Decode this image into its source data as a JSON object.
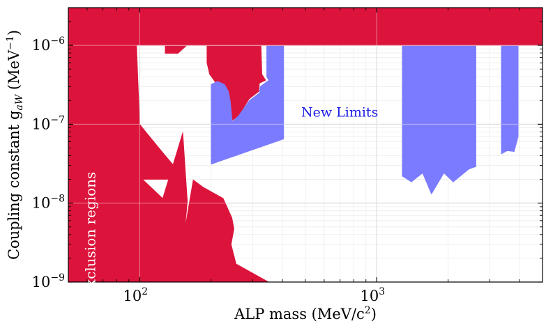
{
  "chart_data": {
    "type": "area",
    "xscale": "log",
    "yscale": "log",
    "xlim": [
      50,
      5000
    ],
    "ylim": [
      1e-09,
      3e-06
    ],
    "xlabel_main": "ALP mass (MeV/c",
    "xlabel_sup": "2",
    "xlabel_end": ")",
    "ylabel_main": "Coupling constant g",
    "ylabel_sub": "aW",
    "ylabel_end": " (MeV",
    "ylabel_sup": "−1",
    "ylabel_close": ")",
    "x_ticks": [
      {
        "value": 100,
        "base": "10",
        "exp": "2"
      },
      {
        "value": 1000,
        "base": "10",
        "exp": "3"
      }
    ],
    "y_ticks": [
      {
        "value": 1e-09,
        "base": "10",
        "exp": "−9"
      },
      {
        "value": 1e-08,
        "base": "10",
        "exp": "−8"
      },
      {
        "value": 1e-07,
        "base": "10",
        "exp": "−7"
      },
      {
        "value": 1e-06,
        "base": "10",
        "exp": "−6"
      }
    ],
    "grid": true,
    "annotations": [
      {
        "text": "Exclusion regions",
        "x": 65,
        "y": 4e-09,
        "rotation": -90,
        "style": "excl"
      },
      {
        "text": "New Limits",
        "x": 480,
        "y": 1.25e-07,
        "rotation": 0,
        "style": "new"
      }
    ],
    "series": [
      {
        "role": "excluded",
        "color": "#dc143c",
        "regions": [
          [
            [
              50,
              3e-06
            ],
            [
              5000,
              3e-06
            ],
            [
              5000,
              1e-06
            ],
            [
              50,
              1e-06
            ]
          ],
          [
            [
              50,
              1e-06
            ],
            [
              97,
              1e-06
            ],
            [
              100,
              1e-07
            ],
            [
              108,
              7.5e-08
            ],
            [
              125,
              4.4e-08
            ],
            [
              150,
              2.3e-08
            ],
            [
              140,
              2e-08
            ],
            [
              103,
              2e-08
            ],
            [
              125,
              1.15e-08
            ],
            [
              152,
              7.9e-08
            ],
            [
              159,
              1.05e-08
            ],
            [
              155,
              4.7e-09
            ],
            [
              168,
              1.98e-08
            ],
            [
              185,
              1.6e-08
            ],
            [
              225,
              1.15e-08
            ],
            [
              245,
              6.5e-09
            ],
            [
              250,
              4.7e-09
            ],
            [
              243,
              3e-09
            ],
            [
              255,
              1.7e-09
            ],
            [
              350,
              1e-09
            ],
            [
              50,
              1e-09
            ]
          ],
          [
            [
              128,
              7.9e-07
            ],
            [
              145,
              7.9e-07
            ],
            [
              157,
              9.8e-07
            ],
            [
              128,
              9.8e-07
            ]
          ],
          [
            [
              192,
              9.8e-07
            ],
            [
              192,
              6e-07
            ],
            [
              197,
              4.3e-07
            ],
            [
              210,
              3.3e-07
            ],
            [
              225,
              3.1e-07
            ],
            [
              234,
              2.7e-07
            ],
            [
              240,
              2e-07
            ],
            [
              245,
              1.1e-07
            ],
            [
              262,
              1.3e-07
            ],
            [
              290,
              2.1e-07
            ],
            [
              318,
              2.6e-07
            ],
            [
              320,
              3.3e-07
            ],
            [
              340,
              3.6e-07
            ],
            [
              328,
              4.3e-07
            ],
            [
              325,
              9.8e-07
            ]
          ]
        ]
      },
      {
        "role": "new_limits",
        "name": "New Limits",
        "color": "#7b7bff",
        "regions": [
          [
            [
              200,
              3.1e-08
            ],
            [
              200,
              3.2e-07
            ],
            [
              213,
              3.5e-07
            ],
            [
              228,
              3.2e-07
            ],
            [
              237,
              2.6e-07
            ],
            [
              241,
              2e-07
            ],
            [
              246,
              1.07e-07
            ],
            [
              262,
              1.3e-07
            ],
            [
              290,
              2e-07
            ],
            [
              320,
              2.5e-07
            ],
            [
              322,
              3e-07
            ],
            [
              350,
              3.6e-07
            ],
            [
              343,
              4e-07
            ],
            [
              343,
              9.8e-07
            ],
            [
              405,
              9.8e-07
            ],
            [
              405,
              6.5e-08
            ]
          ],
          [
            [
              1280,
              9.8e-07
            ],
            [
              2620,
              9.8e-07
            ],
            [
              2620,
              2.9e-08
            ],
            [
              2450,
              2.7e-08
            ],
            [
              2100,
              1.85e-08
            ],
            [
              1920,
              2.4e-08
            ],
            [
              1700,
              1.3e-08
            ],
            [
              1560,
              2.4e-08
            ],
            [
              1400,
              1.85e-08
            ],
            [
              1280,
              2.2e-08
            ]
          ],
          [
            [
              3350,
              9.8e-07
            ],
            [
              3950,
              9.8e-07
            ],
            [
              3950,
              7e-08
            ],
            [
              3800,
              4.5e-08
            ],
            [
              3550,
              4.6e-08
            ],
            [
              3350,
              4.2e-08
            ]
          ]
        ]
      }
    ]
  }
}
